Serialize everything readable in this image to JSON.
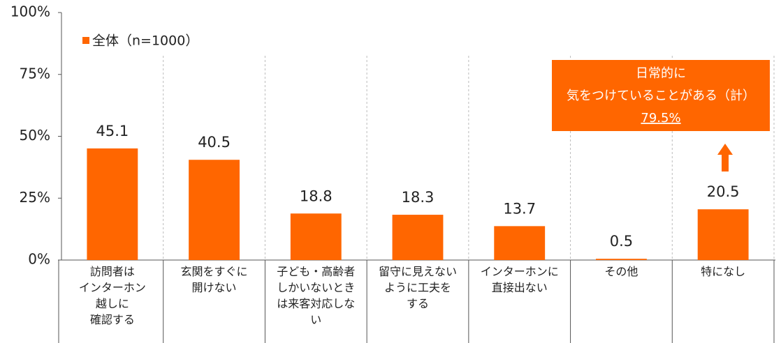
{
  "chart_data": {
    "type": "bar",
    "categories": [
      "訪問者は\nインターホン\n越しに\n確認する",
      "玄関をすぐに\n開けない",
      "子ども・高齢者\nしかいないとき\nは来客対応しな\nい",
      "留守に見えない\nように工夫を\nする",
      "インターホンに\n直接出ない",
      "その他",
      "特になし"
    ],
    "series": [
      {
        "name": "全体（n=1000）",
        "color": "#ff6600",
        "values": [
          45.1,
          40.5,
          18.8,
          18.3,
          13.7,
          0.5,
          20.5
        ]
      }
    ],
    "ylim": [
      0,
      100
    ],
    "yticks": [
      {
        "value": 0,
        "label": "0%"
      },
      {
        "value": 25,
        "label": "25%"
      },
      {
        "value": 50,
        "label": "50%"
      },
      {
        "value": 75,
        "label": "75%"
      },
      {
        "value": 100,
        "label": "100%"
      }
    ],
    "legend": "top-left",
    "annotation": {
      "lines": [
        "日常的に",
        "気をつけていることがある（計）",
        "79.5%"
      ]
    }
  }
}
